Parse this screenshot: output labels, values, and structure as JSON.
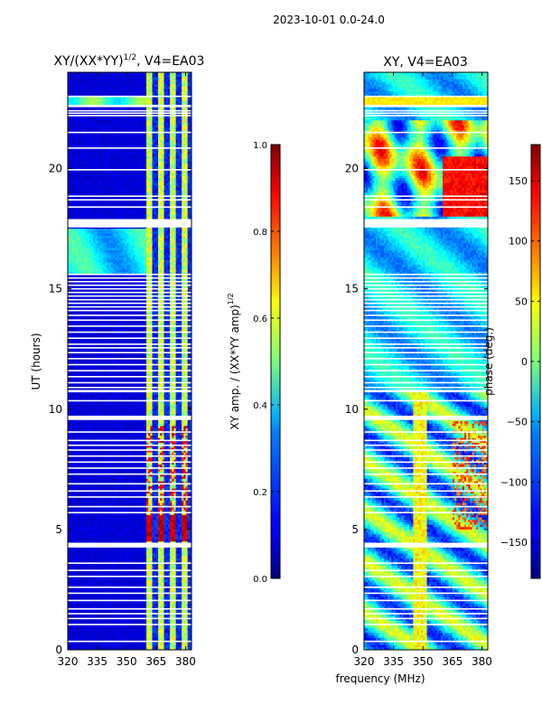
{
  "suptitle": "2023-10-01 0.0-24.0",
  "xlabel": "frequency (MHz)",
  "chart_data": [
    {
      "type": "heatmap",
      "title": "XY/(XX*YY)",
      "title_sup": "1/2",
      "title_suffix": ", V4=EA03",
      "ylabel": "UT (hours)",
      "x_ticks": [
        "320",
        "335",
        "350",
        "365",
        "380"
      ],
      "y_ticks": [
        "0",
        "5",
        "10",
        "15",
        "20"
      ],
      "xlim": [
        320,
        383
      ],
      "ylim": [
        0,
        24
      ],
      "colorbar": {
        "label": "XY amp. / (XX*YY amp)",
        "label_sup": "1/2",
        "ticks": [
          "0.0",
          "0.2",
          "0.4",
          "0.6",
          "0.8",
          "1.0"
        ],
        "range": [
          0.0,
          1.0
        ],
        "colormap": "jet"
      },
      "flagged_hours": [
        0.35,
        1.05,
        1.3,
        1.5,
        1.7,
        2.05,
        2.35,
        2.6,
        3.05,
        3.3,
        3.6,
        4.3,
        4.4,
        5.7,
        5.95,
        6.35,
        6.6,
        6.9,
        7.3,
        7.55,
        7.8,
        8.05,
        8.3,
        8.5,
        8.7,
        9.05,
        9.6,
        9.7,
        10.35,
        10.75,
        10.9,
        11.1,
        11.35,
        11.6,
        11.85,
        12.1,
        12.35,
        12.55,
        12.7,
        12.95,
        13.2,
        13.45,
        13.7,
        13.9,
        14.1,
        14.25,
        14.4,
        14.55,
        14.7,
        14.85,
        15.0,
        15.15,
        15.3,
        15.45,
        15.6,
        17.6,
        17.75,
        17.85,
        18.4,
        18.7,
        18.85,
        19.95,
        20.85,
        21.5,
        22.2,
        22.3,
        22.4,
        22.6,
        23.0
      ],
      "flagged_bands": [
        [
          22.55,
          22.65
        ],
        [
          17.55,
          17.9
        ],
        [
          4.25,
          4.45
        ],
        [
          9.55,
          9.7
        ],
        [
          10.7,
          10.8
        ]
      ]
    },
    {
      "type": "heatmap",
      "title": "XY, V4=EA03",
      "x_ticks": [
        "320",
        "335",
        "350",
        "365",
        "380"
      ],
      "y_ticks": [
        "0",
        "5",
        "10",
        "15",
        "20"
      ],
      "xlim": [
        320,
        383
      ],
      "ylim": [
        0,
        24
      ],
      "colorbar": {
        "label": "phase (deg.)",
        "ticks": [
          "-150",
          "-100",
          "-50",
          "0",
          "50",
          "100",
          "150"
        ],
        "range": [
          -180,
          180
        ],
        "colormap": "jet"
      },
      "flagged_hours": [
        0.35,
        1.05,
        1.3,
        1.5,
        1.7,
        2.05,
        2.35,
        2.6,
        3.05,
        3.3,
        3.6,
        4.3,
        4.4,
        5.7,
        5.95,
        6.35,
        6.6,
        6.9,
        7.3,
        7.55,
        7.8,
        8.05,
        8.3,
        8.5,
        8.7,
        9.05,
        9.6,
        9.7,
        10.35,
        10.75,
        10.9,
        11.1,
        11.35,
        11.6,
        11.85,
        12.1,
        12.35,
        12.55,
        12.7,
        12.95,
        13.2,
        13.45,
        13.7,
        13.9,
        14.1,
        14.25,
        14.4,
        14.55,
        14.7,
        14.85,
        15.0,
        15.15,
        15.3,
        15.45,
        15.6,
        17.6,
        17.75,
        17.85,
        18.4,
        18.7,
        18.85,
        19.95,
        20.85,
        21.5,
        22.2,
        22.3,
        22.4,
        22.6,
        23.0
      ],
      "flagged_bands": [
        [
          22.55,
          22.65
        ],
        [
          17.55,
          17.9
        ],
        [
          4.25,
          4.45
        ],
        [
          9.55,
          9.7
        ],
        [
          10.7,
          10.8
        ]
      ]
    }
  ]
}
